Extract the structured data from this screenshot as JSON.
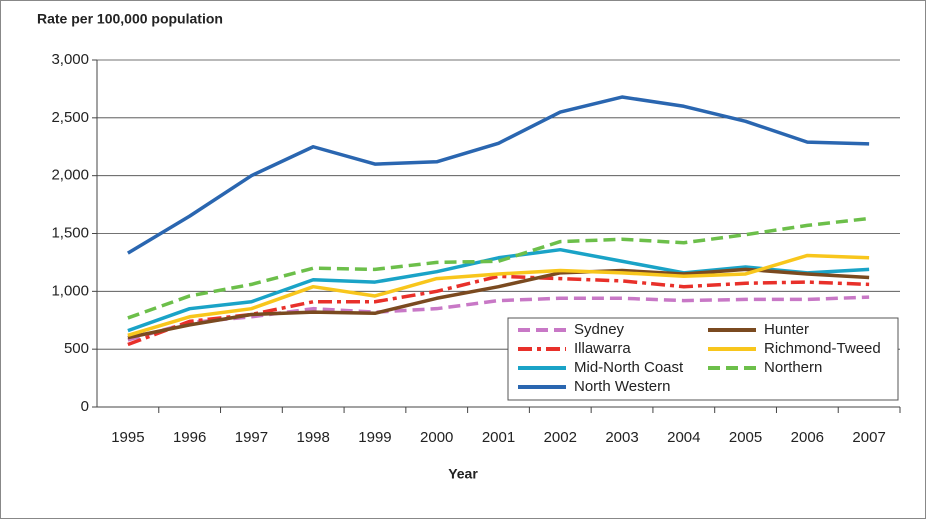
{
  "chart_data": {
    "type": "line",
    "y_label": "Rate per 100,000 population",
    "x_label": "Year",
    "categories": [
      "1995",
      "1996",
      "1997",
      "1998",
      "1999",
      "2000",
      "2001",
      "2002",
      "2003",
      "2004",
      "2005",
      "2006",
      "2007"
    ],
    "series": [
      {
        "name": "Sydney",
        "color": "#c878c6",
        "style": "dashed",
        "values": [
          580,
          730,
          780,
          850,
          820,
          850,
          920,
          940,
          940,
          920,
          930,
          930,
          950
        ]
      },
      {
        "name": "Illawarra",
        "color": "#e8302a",
        "style": "dashdot",
        "values": [
          540,
          740,
          800,
          910,
          910,
          1000,
          1130,
          1110,
          1090,
          1040,
          1070,
          1080,
          1060
        ]
      },
      {
        "name": "Mid-North Coast",
        "color": "#1aa3c7",
        "style": "solid",
        "values": [
          660,
          850,
          910,
          1100,
          1080,
          1170,
          1290,
          1360,
          1260,
          1160,
          1210,
          1160,
          1190
        ]
      },
      {
        "name": "North Western",
        "color": "#2a66b0",
        "style": "solid",
        "values": [
          1330,
          1650,
          2000,
          2250,
          2100,
          2120,
          2280,
          2550,
          2680,
          2600,
          2470,
          2290,
          2275
        ]
      },
      {
        "name": "Hunter",
        "color": "#7a4a20",
        "style": "solid",
        "values": [
          600,
          710,
          800,
          820,
          810,
          940,
          1040,
          1160,
          1180,
          1150,
          1190,
          1150,
          1120
        ]
      },
      {
        "name": "Richmond-Tweed",
        "color": "#f8c61c",
        "style": "solid",
        "values": [
          620,
          780,
          850,
          1040,
          960,
          1110,
          1150,
          1180,
          1160,
          1130,
          1150,
          1310,
          1290
        ]
      },
      {
        "name": "Northern",
        "color": "#6cbf4a",
        "style": "dashed",
        "values": [
          770,
          960,
          1060,
          1200,
          1190,
          1250,
          1260,
          1430,
          1450,
          1420,
          1490,
          1570,
          1630
        ]
      }
    ],
    "ylim": [
      0,
      3000
    ],
    "yticks": [
      0,
      500,
      {
        "value": 1000,
        "label": "1,000"
      },
      {
        "value": 1500,
        "label": "1,500"
      },
      {
        "value": 2000,
        "label": "2,000"
      },
      {
        "value": 2500,
        "label": "2,500"
      },
      {
        "value": 3000,
        "label": "3,000"
      }
    ],
    "grid": true,
    "legend": "lower right"
  }
}
